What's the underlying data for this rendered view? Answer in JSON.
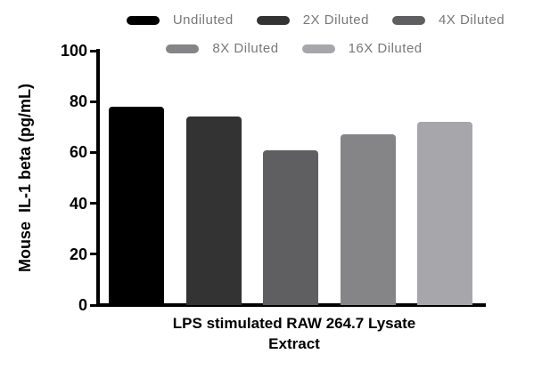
{
  "colors": {
    "background": "#ffffff",
    "axis": "#000000",
    "axis_text": "#000000",
    "legend_text": "#77787b"
  },
  "legend": {
    "rows": [
      [
        {
          "label": "Undiluted",
          "color": "#000000"
        },
        {
          "label": "2X Diluted",
          "color": "#333333"
        },
        {
          "label": "4X Diluted",
          "color": "#5f5f62"
        }
      ],
      [
        {
          "label": "8X Diluted",
          "color": "#858588"
        },
        {
          "label": "16X Diluted",
          "color": "#a6a6ab"
        }
      ]
    ]
  },
  "chart_data": {
    "type": "bar",
    "title": "",
    "categories": [
      "Undiluted",
      "2X Diluted",
      "4X Diluted",
      "8X Diluted",
      "16X Diluted"
    ],
    "values": [
      78,
      74,
      61,
      67,
      72
    ],
    "bar_colors": [
      "#000000",
      "#333333",
      "#5f5f62",
      "#858588",
      "#a6a6ab"
    ],
    "xlabel": "LPS stimulated RAW 264.7 Lysate Extract",
    "ylabel": "Mouse  IL-1 beta (pg/mL)",
    "ylim": [
      0,
      100
    ],
    "yticks": [
      0,
      20,
      40,
      60,
      80,
      100
    ],
    "grid": false,
    "legend_position": "top"
  }
}
